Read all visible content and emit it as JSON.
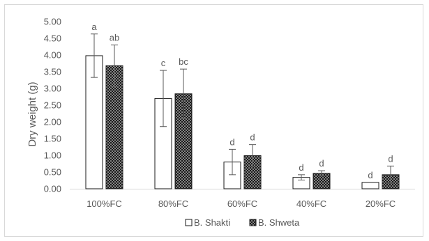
{
  "chart_data": {
    "type": "bar",
    "title": "",
    "xlabel": "",
    "ylabel": "Dry weight (g)",
    "ylim": [
      0,
      5
    ],
    "yticks": [
      "0.00",
      "0.50",
      "1.00",
      "1.50",
      "2.00",
      "2.50",
      "3.00",
      "3.50",
      "4.00",
      "4.50",
      "5.00"
    ],
    "categories": [
      "100%FC",
      "80%FC",
      "60%FC",
      "40%FC",
      "20%FC"
    ],
    "grid": false,
    "legend_position": "bottom",
    "series": [
      {
        "name": "B. Shakti",
        "fill": "#ffffff",
        "values": [
          3.98,
          2.7,
          0.8,
          0.34,
          0.19
        ],
        "errors": [
          0.65,
          0.84,
          0.38,
          0.08,
          0.0
        ],
        "significance": [
          "a",
          "c",
          "d",
          "d",
          "d"
        ]
      },
      {
        "name": "B. Shweta",
        "fill": "#1a1a1a",
        "pattern": "white-dots",
        "values": [
          3.68,
          2.84,
          0.99,
          0.46,
          0.42
        ],
        "errors": [
          0.62,
          0.74,
          0.33,
          0.08,
          0.26
        ],
        "significance": [
          "ab",
          "bc",
          "d",
          "d",
          "d"
        ]
      }
    ]
  }
}
